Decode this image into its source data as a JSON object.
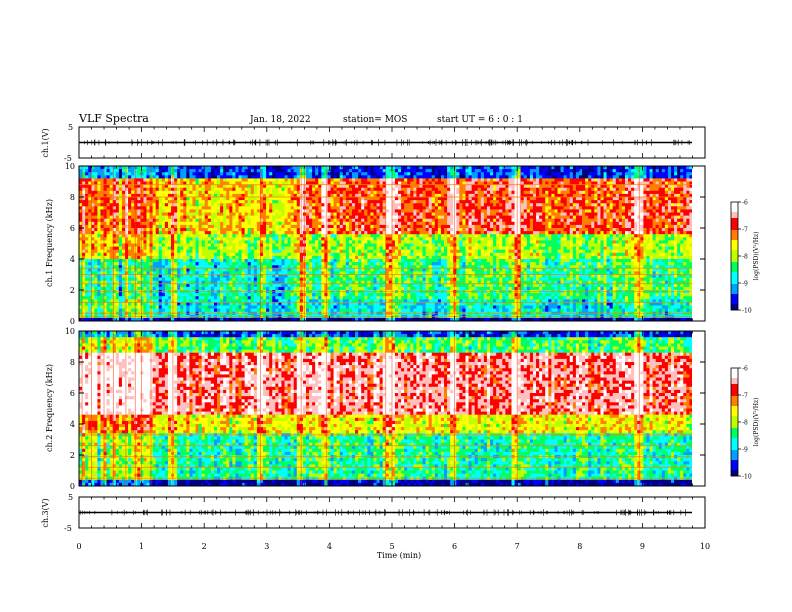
{
  "header": {
    "title": "VLF Spectra",
    "date": "Jan. 18, 2022",
    "station": "station= MOS",
    "start": "start UT =  6 : 0 : 1"
  },
  "axes": {
    "time_label": "Time (min)",
    "time_ticks": [
      "0",
      "1",
      "2",
      "3",
      "4",
      "5",
      "6",
      "7",
      "8",
      "9",
      "10"
    ],
    "freq_label": "Frequency (kHz)",
    "freq_ticks": [
      "0",
      "2",
      "4",
      "6",
      "8",
      "10"
    ],
    "wave_ticks": [
      "5",
      "-5"
    ]
  },
  "colorbar": {
    "label": "log(PSD)(V²/Hz)",
    "ticks": [
      "-6",
      "-7",
      "-8",
      "-9",
      "-10"
    ],
    "colors": [
      "#000080",
      "#0000ff",
      "#00a0ff",
      "#00ffff",
      "#00ff60",
      "#c0ff00",
      "#ffff00",
      "#ff8000",
      "#ff0000",
      "#ffc0c0",
      "#ffffff"
    ]
  },
  "chart_data": [
    {
      "type": "line",
      "panel": "ch.1(V)",
      "xlabel": "",
      "ylabel": "ch.1(V)",
      "xlim": [
        0,
        10
      ],
      "ylim": [
        -5,
        5
      ],
      "series": [
        {
          "x": [
            0,
            9.8
          ],
          "values": [
            0,
            0
          ]
        }
      ],
      "grid": false
    },
    {
      "type": "heatmap",
      "panel": "ch.1 spectrogram",
      "ylabel": "ch.1 Frequency (kHz)",
      "xlim": [
        0,
        10
      ],
      "ylim": [
        0,
        10
      ],
      "data_end_min": 9.8,
      "color_scale": "log(PSD)(V²/Hz)",
      "zlim": [
        -10,
        -6
      ],
      "horizontal_lines_khz": [
        0.3,
        0.5,
        1.2,
        1.9,
        2.4,
        3.0,
        3.4,
        8.0,
        8.8
      ],
      "vertical_bursts_min": [
        0.05,
        0.2,
        0.4,
        0.55,
        0.75,
        0.9,
        1.0,
        1.15,
        1.5,
        2.9,
        3.55,
        3.6,
        3.95,
        4.9,
        5.0,
        6.0,
        7.0,
        7.05,
        8.95
      ]
    },
    {
      "type": "heatmap",
      "panel": "ch.2 spectrogram",
      "ylabel": "ch.2 Frequency (kHz)",
      "xlim": [
        0,
        10
      ],
      "ylim": [
        0,
        10
      ],
      "data_end_min": 9.8,
      "color_scale": "log(PSD)(V²/Hz)",
      "zlim": [
        -10,
        -6
      ],
      "horizontal_lines_khz": [
        0.5,
        1.2,
        1.9,
        2.6,
        3.3
      ],
      "vertical_bursts_min": [
        0.05,
        0.2,
        0.4,
        0.55,
        0.75,
        0.9,
        1.0,
        1.15,
        1.5,
        2.9,
        3.55,
        3.95,
        4.9,
        5.0,
        6.0,
        7.0,
        8.95
      ]
    },
    {
      "type": "line",
      "panel": "ch.3(V)",
      "xlabel": "Time (min)",
      "ylabel": "ch.3(V)",
      "xlim": [
        0,
        10
      ],
      "ylim": [
        -5,
        5
      ],
      "series": [
        {
          "x": [
            0,
            9.8
          ],
          "values": [
            0,
            0
          ]
        }
      ],
      "grid": false
    }
  ]
}
